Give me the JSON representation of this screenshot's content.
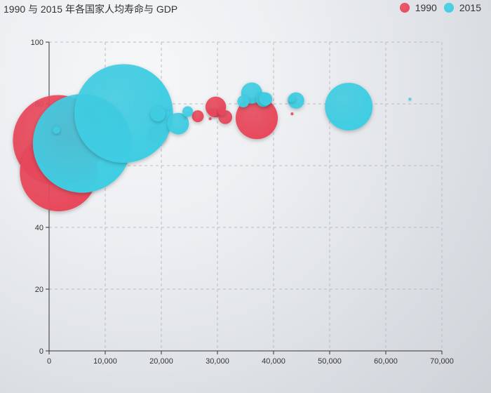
{
  "chart_data": {
    "type": "scatter",
    "title": "1990 与 2015 年各国家人均寿命与 GDP",
    "xlabel": "",
    "ylabel": "",
    "xlim": [
      0,
      70000
    ],
    "ylim": [
      0,
      100
    ],
    "x_ticks": [
      "0",
      "10,000",
      "20,000",
      "30,000",
      "40,000",
      "50,000",
      "60,000",
      "70,000"
    ],
    "y_ticks": [
      "0",
      "20",
      "40",
      "60",
      "80",
      "100"
    ],
    "grid": true,
    "legend_position": "top-right",
    "series": [
      {
        "name": "1990",
        "color": "#e8485b",
        "points": [
          {
            "x": 1600,
            "y": 68.2,
            "size": 1150000000
          },
          {
            "x": 1700,
            "y": 57.8,
            "size": 850000000
          },
          {
            "x": 10500,
            "y": 67.5,
            "size": 7000000
          },
          {
            "x": 19300,
            "y": 70.0,
            "size": 50000000
          },
          {
            "x": 24300,
            "y": 75.5,
            "size": 900000
          },
          {
            "x": 26500,
            "y": 76.0,
            "size": 20000000
          },
          {
            "x": 28700,
            "y": 75.2,
            "size": 500000
          },
          {
            "x": 29200,
            "y": 77.2,
            "size": 10000000
          },
          {
            "x": 29700,
            "y": 79.0,
            "size": 60000000
          },
          {
            "x": 30800,
            "y": 77.5,
            "size": 8000000
          },
          {
            "x": 31400,
            "y": 75.7,
            "size": 27000000
          },
          {
            "x": 37000,
            "y": 75.4,
            "size": 250000000
          },
          {
            "x": 43300,
            "y": 76.8,
            "size": 300000
          }
        ]
      },
      {
        "name": "2015",
        "color": "#3fcde3",
        "points": [
          {
            "x": 1300,
            "y": 71.5,
            "size": 7000000
          },
          {
            "x": 5900,
            "y": 67.2,
            "size": 1370000000
          },
          {
            "x": 13300,
            "y": 76.9,
            "size": 1370000000
          },
          {
            "x": 19400,
            "y": 76.7,
            "size": 30000000
          },
          {
            "x": 21300,
            "y": 78.4,
            "size": 1500000
          },
          {
            "x": 23000,
            "y": 73.6,
            "size": 66000000
          },
          {
            "x": 24700,
            "y": 77.5,
            "size": 16000000
          },
          {
            "x": 34600,
            "y": 80.8,
            "size": 20000000
          },
          {
            "x": 36100,
            "y": 83.5,
            "size": 63000000
          },
          {
            "x": 38200,
            "y": 81.4,
            "size": 30000000
          },
          {
            "x": 38600,
            "y": 81.6,
            "size": 24000000
          },
          {
            "x": 43200,
            "y": 81.7,
            "size": 7000000
          },
          {
            "x": 44000,
            "y": 81.1,
            "size": 38000000
          },
          {
            "x": 53400,
            "y": 79.1,
            "size": 320000000
          },
          {
            "x": 64300,
            "y": 81.5,
            "size": 1000000
          }
        ]
      }
    ]
  }
}
